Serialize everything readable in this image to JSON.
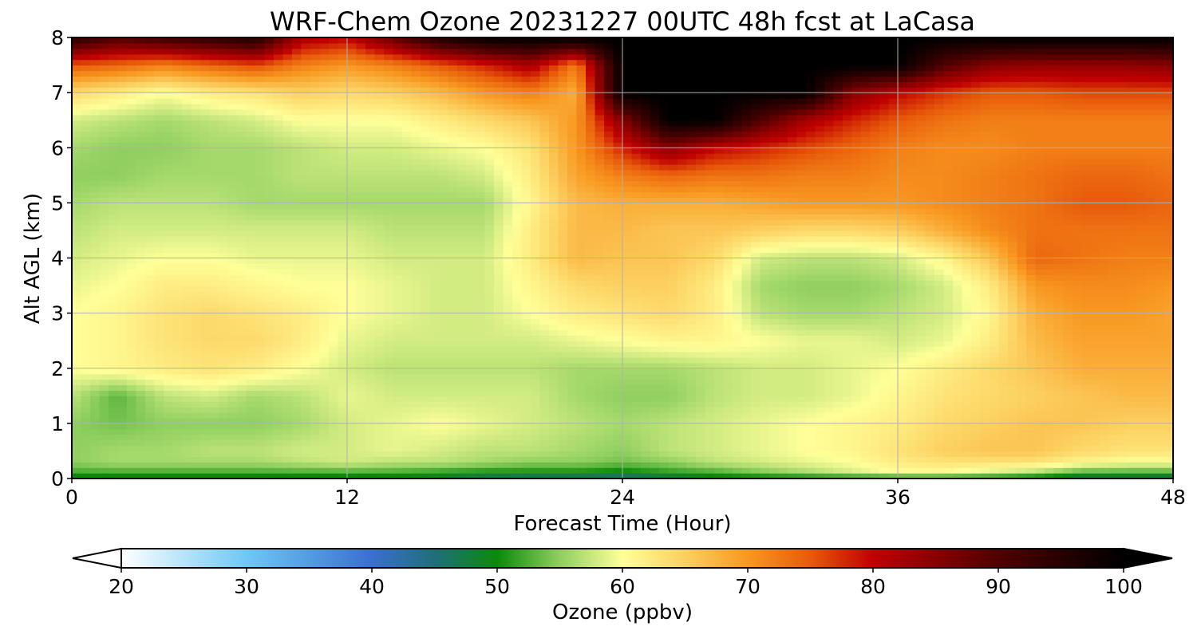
{
  "chart_data": {
    "type": "heatmap",
    "title": "WRF-Chem Ozone  20231227 00UTC 48h fcst at LaCasa",
    "xlabel": "Forecast Time (Hour)",
    "ylabel": "Alt AGL (km)",
    "xlim": [
      0,
      48
    ],
    "ylim": [
      0,
      8
    ],
    "x_ticks": [
      0,
      12,
      24,
      36,
      48
    ],
    "y_ticks": [
      0,
      1,
      2,
      3,
      4,
      5,
      6,
      7,
      8
    ],
    "grid": true,
    "colorbar": {
      "label": "Ozone  (ppbv)",
      "range": [
        20,
        100
      ],
      "ticks": [
        20,
        30,
        40,
        50,
        60,
        70,
        80,
        90,
        100
      ],
      "extend": "both",
      "stops": [
        {
          "value": 20,
          "color": "#ffffff"
        },
        {
          "value": 30,
          "color": "#6ec8f5"
        },
        {
          "value": 40,
          "color": "#3a6fd0"
        },
        {
          "value": 45,
          "color": "#1f6f7a"
        },
        {
          "value": 50,
          "color": "#0a8a0a"
        },
        {
          "value": 55,
          "color": "#8fcf60"
        },
        {
          "value": 60,
          "color": "#ffff99"
        },
        {
          "value": 65,
          "color": "#fcd060"
        },
        {
          "value": 70,
          "color": "#f89820"
        },
        {
          "value": 75,
          "color": "#e85a0a"
        },
        {
          "value": 80,
          "color": "#c00000"
        },
        {
          "value": 90,
          "color": "#500000"
        },
        {
          "value": 100,
          "color": "#000000"
        }
      ]
    },
    "x": [
      0,
      2,
      4,
      6,
      8,
      10,
      12,
      14,
      16,
      18,
      20,
      22,
      24,
      26,
      28,
      30,
      32,
      34,
      36,
      38,
      40,
      42,
      44,
      46,
      48
    ],
    "y": [
      0,
      0.1,
      0.3,
      0.5,
      1,
      1.5,
      2,
      2.5,
      3,
      3.5,
      4,
      4.5,
      5,
      5.5,
      6,
      6.5,
      7,
      7.5,
      8
    ],
    "z": [
      [
        48,
        48,
        48,
        48,
        48,
        48,
        48,
        48,
        48,
        46,
        45,
        45,
        44,
        46,
        48,
        48,
        48,
        48,
        48,
        48,
        48,
        47,
        46,
        46,
        45
      ],
      [
        52,
        52,
        52,
        52,
        52,
        52,
        52,
        52,
        51,
        50,
        50,
        50,
        49,
        51,
        52,
        54,
        56,
        58,
        60,
        60,
        58,
        56,
        52,
        52,
        52
      ],
      [
        55,
        56,
        56,
        56,
        56,
        57,
        58,
        57,
        57,
        56,
        55,
        55,
        54,
        55,
        57,
        58,
        59,
        60,
        62,
        63,
        63,
        63,
        61,
        60,
        60
      ],
      [
        55,
        56,
        56,
        57,
        57,
        58,
        58,
        59,
        58,
        57,
        57,
        56,
        55,
        57,
        58,
        59,
        60,
        61,
        63,
        65,
        66,
        66,
        64,
        63,
        63
      ],
      [
        55,
        54,
        55,
        55,
        55,
        56,
        58,
        59,
        60,
        59,
        58,
        57,
        56,
        57,
        58,
        59,
        60,
        61,
        62,
        64,
        65,
        66,
        66,
        65,
        65
      ],
      [
        57,
        53,
        57,
        58,
        56,
        57,
        59,
        58,
        58,
        58,
        58,
        56,
        55,
        55,
        57,
        58,
        58,
        59,
        61,
        63,
        64,
        65,
        66,
        67,
        67
      ],
      [
        60,
        61,
        62,
        63,
        62,
        60,
        58,
        57,
        57,
        57,
        57,
        56,
        56,
        56,
        57,
        58,
        58,
        59,
        60,
        62,
        64,
        66,
        68,
        68,
        68
      ],
      [
        60,
        61,
        63,
        64,
        64,
        62,
        59,
        58,
        58,
        58,
        58,
        59,
        60,
        61,
        61,
        60,
        59,
        59,
        58,
        59,
        62,
        67,
        69,
        69,
        69
      ],
      [
        60,
        61,
        63,
        64,
        63,
        62,
        60,
        59,
        58,
        58,
        60,
        62,
        63,
        64,
        62,
        57,
        56,
        56,
        57,
        58,
        61,
        68,
        70,
        70,
        69
      ],
      [
        59,
        60,
        62,
        62,
        61,
        60,
        60,
        59,
        58,
        58,
        61,
        64,
        65,
        65,
        62,
        56,
        55,
        55,
        56,
        58,
        62,
        70,
        71,
        71,
        70
      ],
      [
        58,
        59,
        60,
        60,
        59,
        59,
        59,
        58,
        58,
        58,
        62,
        67,
        66,
        66,
        64,
        58,
        57,
        57,
        58,
        61,
        66,
        74,
        73,
        72,
        72
      ],
      [
        57,
        58,
        58,
        58,
        58,
        58,
        58,
        57,
        57,
        57,
        62,
        67,
        67,
        66,
        66,
        65,
        64,
        64,
        65,
        68,
        71,
        73,
        73,
        73,
        73
      ],
      [
        56,
        57,
        57,
        57,
        56,
        56,
        56,
        56,
        56,
        56,
        61,
        67,
        68,
        68,
        68,
        69,
        70,
        70,
        70,
        71,
        72,
        73,
        75,
        75,
        74
      ],
      [
        55,
        55,
        56,
        56,
        56,
        57,
        57,
        57,
        57,
        58,
        62,
        69,
        72,
        74,
        73,
        73,
        72,
        72,
        71,
        71,
        72,
        73,
        74,
        74,
        73
      ],
      [
        56,
        55,
        55,
        56,
        56,
        57,
        58,
        58,
        59,
        60,
        63,
        70,
        78,
        85,
        80,
        78,
        76,
        74,
        72,
        71,
        71,
        72,
        72,
        72,
        72
      ],
      [
        58,
        57,
        56,
        57,
        58,
        60,
        60,
        60,
        62,
        64,
        66,
        70,
        85,
        100,
        100,
        90,
        82,
        78,
        75,
        73,
        72,
        72,
        72,
        72,
        72
      ],
      [
        64,
        62,
        60,
        62,
        63,
        65,
        64,
        65,
        67,
        70,
        72,
        68,
        100,
        100,
        100,
        100,
        100,
        85,
        80,
        77,
        75,
        75,
        76,
        76,
        76
      ],
      [
        75,
        74,
        72,
        74,
        76,
        72,
        70,
        72,
        75,
        78,
        82,
        72,
        100,
        100,
        100,
        100,
        100,
        100,
        100,
        90,
        85,
        84,
        84,
        84,
        85
      ],
      [
        95,
        90,
        92,
        94,
        96,
        82,
        80,
        88,
        96,
        100,
        100,
        100,
        100,
        100,
        100,
        100,
        100,
        100,
        100,
        100,
        100,
        100,
        100,
        100,
        100
      ]
    ]
  }
}
